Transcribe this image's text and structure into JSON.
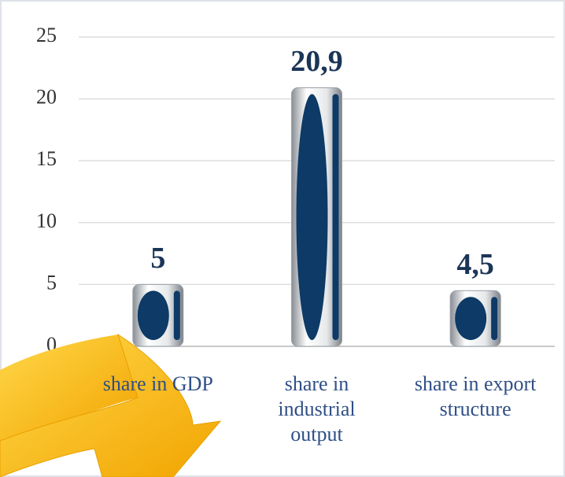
{
  "chart_data": {
    "type": "bar",
    "categories": [
      "share in GDP",
      "share in industrial output",
      "share in export structure"
    ],
    "values": [
      5,
      20.9,
      4.5
    ],
    "value_labels": [
      "5",
      "20,9",
      "4,5"
    ],
    "color": "#0d3a66",
    "ylim": [
      0,
      25
    ],
    "yticks": [
      0,
      5,
      10,
      15,
      20,
      25
    ],
    "grid": true
  }
}
